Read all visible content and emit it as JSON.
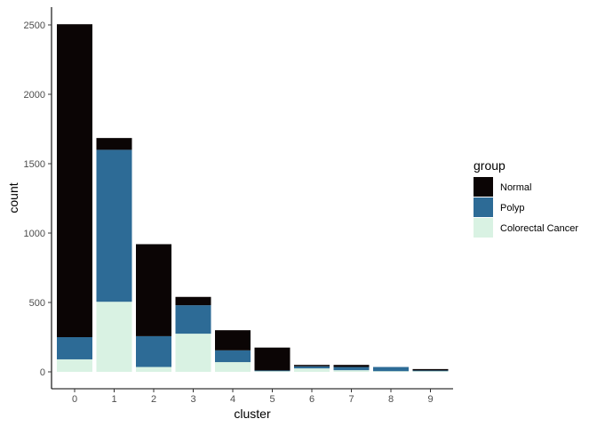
{
  "chart_data": {
    "type": "bar",
    "stacked": true,
    "xlabel": "cluster",
    "ylabel": "count",
    "categories": [
      "0",
      "1",
      "2",
      "3",
      "4",
      "5",
      "6",
      "7",
      "8",
      "9"
    ],
    "yticks": [
      0,
      500,
      1000,
      1500,
      2000,
      2500
    ],
    "ylim": [
      0,
      2510
    ],
    "grid": false,
    "legend": {
      "title": "group",
      "placement": "right",
      "entries": [
        "Normal",
        "Polyp",
        "Colorectal Cancer"
      ]
    },
    "series": [
      {
        "name": "Colorectal Cancer",
        "color": "#d9f2e3",
        "values": [
          90,
          505,
          35,
          275,
          70,
          5,
          25,
          12,
          5,
          5
        ]
      },
      {
        "name": "Polyp",
        "color": "#2d6b96",
        "values": [
          160,
          1095,
          222,
          205,
          85,
          5,
          15,
          23,
          30,
          5
        ]
      },
      {
        "name": "Normal",
        "color": "#0b0505",
        "values": [
          2255,
          85,
          663,
          60,
          145,
          165,
          10,
          15,
          0,
          10
        ]
      }
    ]
  }
}
